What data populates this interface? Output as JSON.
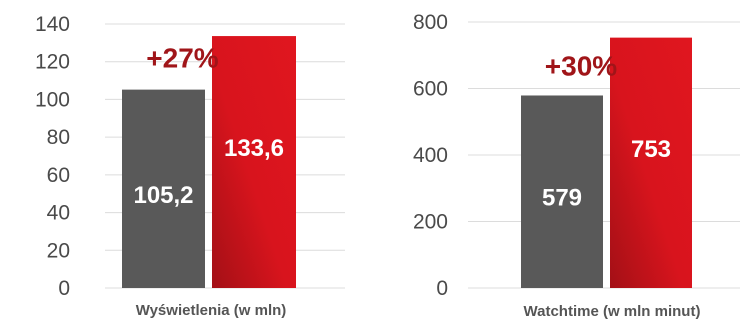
{
  "colors": {
    "previous_bar": "#595959",
    "current_bar_start": "#a31016",
    "current_bar_end": "#e0161f",
    "change_text": "#a01519",
    "tick_text": "#4a4a4a",
    "xlabel_text": "#555555",
    "grid": "#dcdcdc"
  },
  "chart_data": [
    {
      "type": "bar",
      "title": "",
      "xlabel": "Wyświetlenia (w mln)",
      "ylabel": "",
      "ylim": [
        0,
        140
      ],
      "yticks": [
        "0",
        "20",
        "40",
        "60",
        "80",
        "100",
        "120",
        "140"
      ],
      "values": [
        105.2,
        133.6
      ],
      "value_labels": [
        "105,2",
        "133,6"
      ],
      "change_label": "+27%",
      "grid": true
    },
    {
      "type": "bar",
      "title": "",
      "xlabel": "Watchtime (w mln minut)",
      "ylabel": "",
      "ylim": [
        0,
        800
      ],
      "yticks": [
        "0",
        "200",
        "400",
        "600",
        "800"
      ],
      "values": [
        579,
        753
      ],
      "value_labels": [
        "579",
        "753"
      ],
      "change_label": "+30%",
      "grid": true
    }
  ]
}
